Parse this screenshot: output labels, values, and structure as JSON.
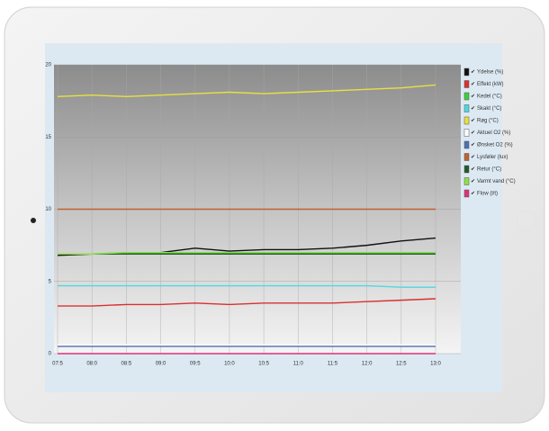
{
  "chart_data": {
    "type": "line",
    "categories": [
      "07:5",
      "08:0",
      "08:5",
      "09:0",
      "09:5",
      "10:0",
      "10:5",
      "11:0",
      "11:5",
      "12:0",
      "12:5",
      "13:0"
    ],
    "ylim": [
      0,
      20
    ],
    "yticks": [
      0,
      5,
      10,
      15,
      20
    ],
    "grid": true,
    "series": [
      {
        "name": "Ydelse (%)",
        "color": "#111111",
        "values": [
          6.8,
          6.9,
          6.9,
          7.0,
          7.3,
          7.1,
          7.2,
          7.2,
          7.3,
          7.5,
          7.8,
          8.0
        ]
      },
      {
        "name": "Effekt (kW)",
        "color": "#d93030",
        "values": [
          3.3,
          3.3,
          3.4,
          3.4,
          3.5,
          3.4,
          3.5,
          3.5,
          3.5,
          3.6,
          3.7,
          3.8
        ]
      },
      {
        "name": "Kedel (°C)",
        "color": "#3ccf3c",
        "values": [
          6.9,
          6.9,
          7.0,
          7.0,
          7.0,
          7.0,
          7.0,
          7.0,
          7.0,
          7.0,
          7.0,
          7.0
        ]
      },
      {
        "name": "Skakt (°C)",
        "color": "#4fd8e0",
        "values": [
          4.7,
          4.7,
          4.7,
          4.7,
          4.7,
          4.7,
          4.7,
          4.7,
          4.7,
          4.7,
          4.6,
          4.6
        ]
      },
      {
        "name": "Røg (°C)",
        "color": "#e8e040",
        "values": [
          17.8,
          17.9,
          17.8,
          17.9,
          18.0,
          18.1,
          18.0,
          18.1,
          18.2,
          18.3,
          18.4,
          18.6
        ]
      },
      {
        "name": "Aktuel O2 (%)",
        "color": "#ffffff",
        "values": [
          0.6,
          0.6,
          0.6,
          0.6,
          0.6,
          0.6,
          0.6,
          0.6,
          0.6,
          0.6,
          0.6,
          0.6
        ]
      },
      {
        "name": "Ønsket O2 (%)",
        "color": "#5070b0",
        "values": [
          0.5,
          0.5,
          0.5,
          0.5,
          0.5,
          0.5,
          0.5,
          0.5,
          0.5,
          0.5,
          0.5,
          0.5
        ]
      },
      {
        "name": "Lysføler (lux)",
        "color": "#c0622f",
        "values": [
          10,
          10,
          10,
          10,
          10,
          10,
          10,
          10,
          10,
          10,
          10,
          10
        ]
      },
      {
        "name": "Retur (°C)",
        "color": "#1f5a2a",
        "values": [
          6.9,
          6.9,
          6.9,
          6.9,
          6.9,
          6.9,
          6.9,
          6.9,
          6.9,
          6.9,
          6.9,
          6.9
        ]
      },
      {
        "name": "Varmt vand (°C)",
        "color": "#8ee04a",
        "values": [
          6.9,
          6.9,
          7.0,
          7.0,
          7.0,
          7.0,
          7.0,
          7.0,
          7.0,
          7.0,
          7.0,
          7.0
        ]
      },
      {
        "name": "Flow (l/t)",
        "color": "#e0307a",
        "values": [
          0,
          0,
          0,
          0,
          0,
          0,
          0,
          0,
          0,
          0,
          0,
          0
        ]
      }
    ]
  }
}
